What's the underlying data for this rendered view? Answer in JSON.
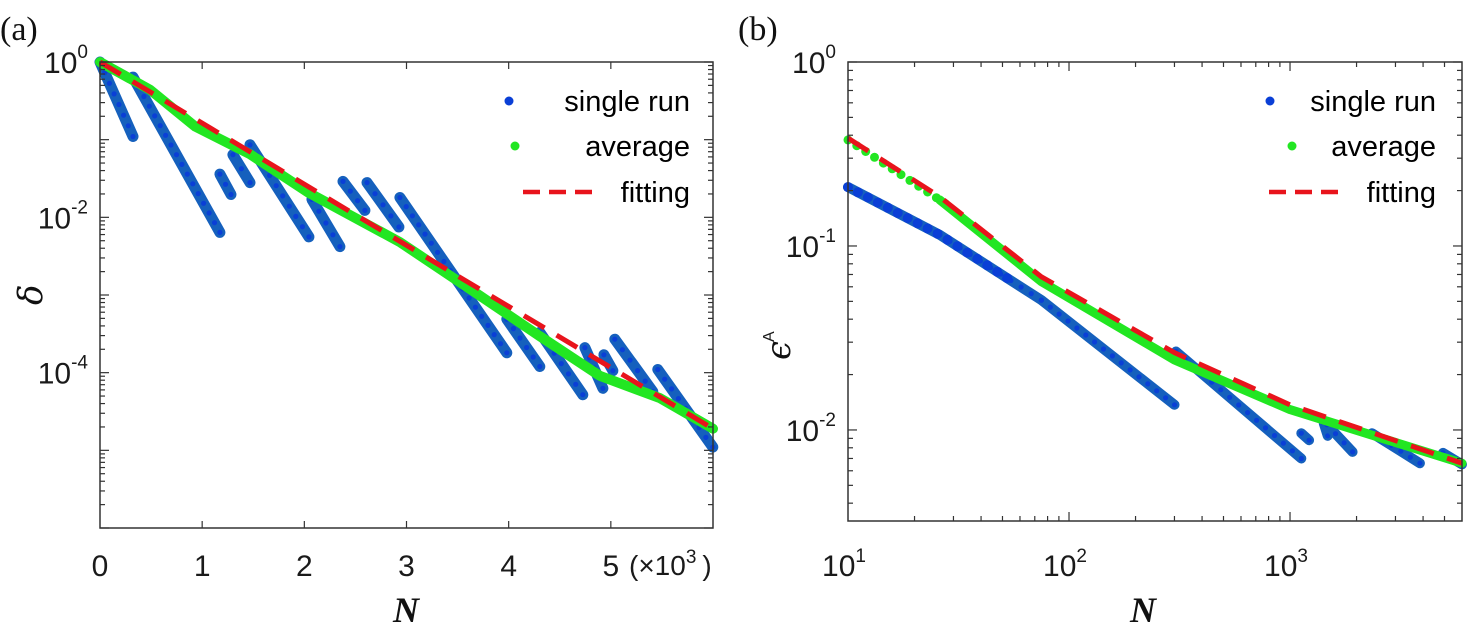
{
  "chart_data": [
    {
      "id": "a",
      "type": "scatter",
      "panel_label": "(a)",
      "xlabel": "N",
      "ylabel": "δ",
      "xscale": "linear",
      "yscale": "log",
      "xlim": [
        0,
        6000
      ],
      "ylim": [
        1e-06,
        1
      ],
      "x_ticks": [
        0,
        1000,
        2000,
        3000,
        4000,
        5000
      ],
      "x_tick_labels": [
        "0",
        "1",
        "2",
        "3",
        "4",
        "5"
      ],
      "x_multiplier_label": "(×10",
      "x_multiplier_exp": "3",
      "x_multiplier_close": ")",
      "y_ticks": [
        1,
        0.01,
        0.0001
      ],
      "y_tick_labels": [
        {
          "base": "10",
          "exp": "0"
        },
        {
          "base": "10",
          "exp": "-2"
        },
        {
          "base": "10",
          "exp": "-4"
        }
      ],
      "legend": {
        "position": "top-right",
        "entries": [
          {
            "label": "single run",
            "marker": "dot",
            "color": "#0a3fd6"
          },
          {
            "label": "average",
            "marker": "dot",
            "color": "#22e622"
          },
          {
            "label": "fitting",
            "marker": "dashed-line",
            "color": "#e8141c"
          }
        ]
      },
      "series": [
        {
          "name": "single run",
          "color": "#1560bd",
          "segments": [
            [
              [
                0,
                1
              ],
              [
                323,
                0.11
              ]
            ],
            [
              [
                323,
                0.64
              ],
              [
                1174,
                0.0064
              ]
            ],
            [
              [
                1174,
                0.036
              ],
              [
                1282,
                0.0197
              ]
            ],
            [
              [
                1301,
                0.064
              ],
              [
                1468,
                0.028
              ]
            ],
            [
              [
                1468,
                0.086
              ],
              [
                2045,
                0.0056
              ]
            ],
            [
              [
                2074,
                0.017
              ],
              [
                2348,
                0.0042
              ]
            ],
            [
              [
                2378,
                0.029
              ],
              [
                2593,
                0.0123
              ]
            ],
            [
              [
                2613,
                0.028
              ],
              [
                2926,
                0.0075
              ]
            ],
            [
              [
                2935,
                0.018
              ],
              [
                3982,
                0.00018
              ]
            ],
            [
              [
                3982,
                0.00049
              ],
              [
                4305,
                0.00012
              ]
            ],
            [
              [
                4305,
                0.00033
              ],
              [
                4726,
                5.2e-05
              ]
            ],
            [
              [
                4746,
                0.00021
              ],
              [
                4922,
                6.3e-05
              ]
            ],
            [
              [
                4932,
                0.00017
              ],
              [
                5020,
                0.000106
              ]
            ],
            [
              [
                5039,
                0.00027
              ],
              [
                5411,
                5.7e-05
              ]
            ],
            [
              [
                5460,
                0.00011
              ],
              [
                5998,
                1.1e-05
              ]
            ]
          ]
        },
        {
          "name": "average",
          "color": "#22e622",
          "points": [
            [
              0,
              1
            ],
            [
              489,
              0.44
            ],
            [
              930,
              0.148
            ],
            [
              1468,
              0.065
            ],
            [
              2035,
              0.021
            ],
            [
              2935,
              0.0048
            ],
            [
              3718,
              0.00098
            ],
            [
              4305,
              0.000295
            ],
            [
              4892,
              9.1e-05
            ],
            [
              5479,
              4.7e-05
            ],
            [
              6000,
              1.9e-05
            ]
          ]
        },
        {
          "name": "fitting",
          "color": "#e8141c",
          "points": [
            [
              0,
              1
            ],
            [
              6000,
              1.9e-05
            ]
          ]
        }
      ]
    },
    {
      "id": "b",
      "type": "scatter",
      "panel_label": "(b)",
      "xlabel": "N",
      "ylabel": "ϵ",
      "ylabel_sub": "A",
      "xscale": "log",
      "yscale": "log",
      "xlim": [
        10,
        6000
      ],
      "ylim": [
        0.0032,
        1
      ],
      "x_ticks": [
        10,
        100,
        1000
      ],
      "x_tick_labels": [
        {
          "base": "10",
          "exp": "1"
        },
        {
          "base": "10",
          "exp": "2"
        },
        {
          "base": "10",
          "exp": "3"
        }
      ],
      "y_ticks": [
        1,
        0.1,
        0.01
      ],
      "y_tick_labels": [
        {
          "base": "10",
          "exp": "0"
        },
        {
          "base": "10",
          "exp": "-1"
        },
        {
          "base": "10",
          "exp": "-2"
        }
      ],
      "legend": {
        "position": "top-right",
        "entries": [
          {
            "label": "single run",
            "marker": "dot",
            "color": "#0a3fd6"
          },
          {
            "label": "average",
            "marker": "dot",
            "color": "#22e622"
          },
          {
            "label": "fitting",
            "marker": "dashed-line",
            "color": "#e8141c"
          }
        ]
      },
      "series": [
        {
          "name": "single run",
          "color": "#1560bd",
          "segments": [
            [
              [
                10,
                0.209
              ],
              [
                26,
                0.115
              ],
              [
                75,
                0.0508
              ],
              [
                300,
                0.0137
              ]
            ],
            [
              [
                305,
                0.0267
              ],
              [
                1125,
                0.007
              ]
            ],
            [
              [
                1125,
                0.0096
              ],
              [
                1220,
                0.0088
              ]
            ],
            [
              [
                1420,
                0.0109
              ],
              [
                1480,
                0.0093
              ]
            ],
            [
              [
                1470,
                0.0107
              ],
              [
                1920,
                0.0076
              ]
            ],
            [
              [
                2350,
                0.0096
              ],
              [
                3870,
                0.0066
              ]
            ],
            [
              [
                4920,
                0.0075
              ],
              [
                6000,
                0.0065
              ]
            ]
          ]
        },
        {
          "name": "average",
          "color": "#22e622",
          "points": [
            [
              10,
              0.377
            ],
            [
              26,
              0.178
            ],
            [
              75,
              0.064
            ],
            [
              300,
              0.024
            ],
            [
              1000,
              0.0129
            ],
            [
              6000,
              0.0066
            ]
          ]
        },
        {
          "name": "fitting",
          "color": "#e8141c",
          "points": [
            [
              10,
              0.386
            ],
            [
              26,
              0.185
            ],
            [
              75,
              0.068
            ],
            [
              300,
              0.0263
            ],
            [
              1000,
              0.0137
            ],
            [
              6000,
              0.0066
            ]
          ]
        }
      ]
    }
  ]
}
